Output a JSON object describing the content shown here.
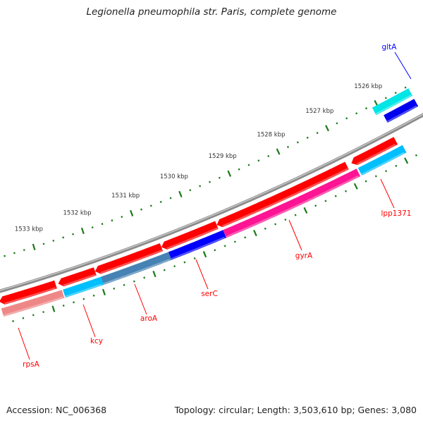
{
  "title": "Legionella pneumophila str. Paris, complete genome",
  "footer": {
    "accession": "Accession: NC_006368",
    "summary": "Topology: circular; Length: 3,503,610 bp; Genes: 3,080"
  },
  "colors": {
    "backbone": "#8a8a8a",
    "tick": "#1a7a1a",
    "label_red": "#ff0000",
    "label_blue": "#0000ff"
  },
  "scale": {
    "major_ticks_kbp": [
      1526,
      1527,
      1528,
      1529,
      1530,
      1531,
      1532,
      1533
    ],
    "unit": "kbp",
    "minor_step_kbp": 0.2
  },
  "genes": [
    {
      "track": "outer2",
      "start": 1525.36,
      "end": 1526.1,
      "color": "#00e5e5",
      "arrow": false
    },
    {
      "track": "outer1",
      "start": 1525.36,
      "end": 1525.98,
      "color": "#0000ee",
      "arrow": false
    },
    {
      "track": "inner1",
      "start": 1532.82,
      "end": 1533.95,
      "color": "#ff0000",
      "arrow": true
    },
    {
      "track": "inner1",
      "start": 1532.03,
      "end": 1532.77,
      "color": "#ff0000",
      "arrow": true
    },
    {
      "track": "inner1",
      "start": 1530.7,
      "end": 1532.03,
      "color": "#ff0000",
      "arrow": true
    },
    {
      "track": "inner1",
      "start": 1529.59,
      "end": 1530.7,
      "color": "#ff0000",
      "arrow": true
    },
    {
      "track": "inner1",
      "start": 1526.98,
      "end": 1529.59,
      "color": "#ff0000",
      "arrow": true
    },
    {
      "track": "inner1",
      "start": 1526.0,
      "end": 1526.89,
      "color": "#ff0000",
      "arrow": true
    },
    {
      "track": "inner2",
      "start": 1532.74,
      "end": 1533.95,
      "color": "#ee8888",
      "arrow": false
    },
    {
      "track": "inner2",
      "start": 1531.96,
      "end": 1532.72,
      "color": "#00bfff",
      "arrow": false
    },
    {
      "track": "inner2",
      "start": 1530.61,
      "end": 1531.96,
      "color": "#4682b4",
      "arrow": false
    },
    {
      "track": "inner2",
      "start": 1529.52,
      "end": 1530.61,
      "color": "#0000ff",
      "arrow": false
    },
    {
      "track": "inner2",
      "start": 1526.85,
      "end": 1529.52,
      "color": "#ff1493",
      "arrow": false
    },
    {
      "track": "inner2",
      "start": 1525.93,
      "end": 1526.82,
      "color": "#00bfff",
      "arrow": false
    }
  ],
  "gene_labels": [
    {
      "name": "gltA",
      "color": "blue"
    },
    {
      "name": "lpp1371",
      "color": "red"
    },
    {
      "name": "gyrA",
      "color": "red"
    },
    {
      "name": "serC",
      "color": "red"
    },
    {
      "name": "aroA",
      "color": "red"
    },
    {
      "name": "kcy",
      "color": "red"
    },
    {
      "name": "rpsA",
      "color": "red"
    }
  ]
}
